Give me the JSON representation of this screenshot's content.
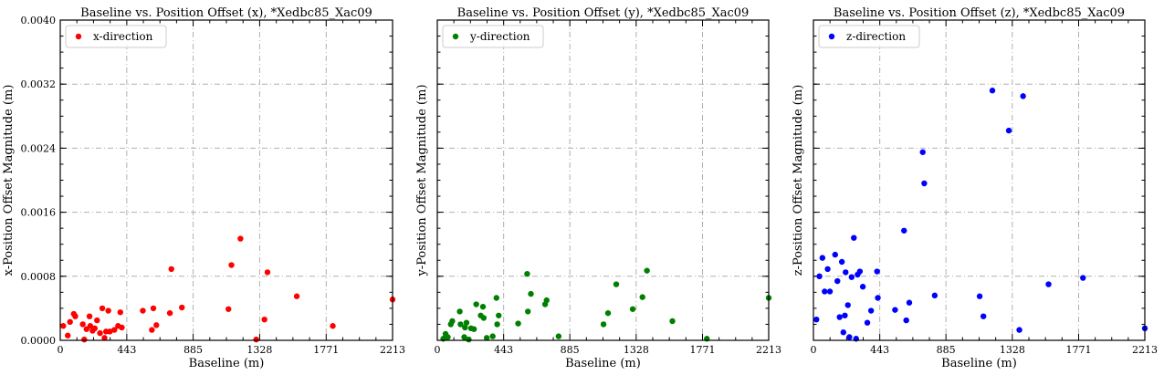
{
  "chart_data": [
    {
      "type": "scatter",
      "title": "Baseline vs. Position Offset (x), *Xedbc85_Xac09",
      "xlabel": "Baseline (m)",
      "ylabel": "x-Position Offset Magnitude (m)",
      "xlim": [
        0,
        2213
      ],
      "ylim": [
        0,
        0.004
      ],
      "xticks": [
        "0",
        "443",
        "885",
        "1328",
        "1771",
        "2213"
      ],
      "yticks": [
        "0.0000",
        "0.0008",
        "0.0016",
        "0.0024",
        "0.0032",
        "0.0040"
      ],
      "show_yticklabels": true,
      "grid": true,
      "legend_position": "top-left",
      "series": [
        {
          "name": "x-direction",
          "color": "#ff0000",
          "points": [
            [
              20,
              0.00018
            ],
            [
              50,
              6e-05
            ],
            [
              65,
              0.00023
            ],
            [
              90,
              0.00033
            ],
            [
              100,
              0.0003
            ],
            [
              150,
              0.0002
            ],
            [
              160,
              1e-05
            ],
            [
              175,
              0.00014
            ],
            [
              195,
              0.0003
            ],
            [
              200,
              0.00018
            ],
            [
              215,
              0.00012
            ],
            [
              230,
              0.00015
            ],
            [
              245,
              0.00025
            ],
            [
              265,
              9e-05
            ],
            [
              280,
              0.0004
            ],
            [
              295,
              3e-05
            ],
            [
              305,
              0.00011
            ],
            [
              320,
              0.00037
            ],
            [
              330,
              0.00011
            ],
            [
              360,
              0.00013
            ],
            [
              385,
              0.00018
            ],
            [
              400,
              0.00035
            ],
            [
              410,
              0.00016
            ],
            [
              550,
              0.00037
            ],
            [
              610,
              0.00013
            ],
            [
              620,
              0.0004
            ],
            [
              640,
              0.00019
            ],
            [
              730,
              0.00034
            ],
            [
              740,
              0.00089
            ],
            [
              810,
              0.00041
            ],
            [
              1120,
              0.00039
            ],
            [
              1140,
              0.00094
            ],
            [
              1200,
              0.00127
            ],
            [
              1305,
              1e-05
            ],
            [
              1360,
              0.00026
            ],
            [
              1380,
              0.00085
            ],
            [
              1575,
              0.00055
            ],
            [
              1815,
              0.00018
            ],
            [
              2213,
              0.00051
            ]
          ]
        }
      ]
    },
    {
      "type": "scatter",
      "title": "Baseline vs. Position Offset (y), *Xedbc85_Xac09",
      "xlabel": "Baseline (m)",
      "ylabel": "y-Position Offset Magnitude (m)",
      "xlim": [
        0,
        2213
      ],
      "ylim": [
        0,
        0.004
      ],
      "xticks": [
        "0",
        "443",
        "885",
        "1328",
        "1771",
        "2213"
      ],
      "yticks": [],
      "show_yticklabels": false,
      "grid": true,
      "legend_position": "top-left",
      "series": [
        {
          "name": "y-direction",
          "color": "#008000",
          "points": [
            [
              40,
              2e-05
            ],
            [
              55,
              8e-05
            ],
            [
              70,
              4e-05
            ],
            [
              90,
              0.0002
            ],
            [
              100,
              0.00024
            ],
            [
              150,
              0.00036
            ],
            [
              155,
              0.0002
            ],
            [
              180,
              4e-05
            ],
            [
              185,
              0.00016
            ],
            [
              195,
              0.00022
            ],
            [
              210,
              1e-05
            ],
            [
              225,
              0.00015
            ],
            [
              245,
              0.00014
            ],
            [
              260,
              0.00045
            ],
            [
              290,
              0.00031
            ],
            [
              305,
              0.00042
            ],
            [
              310,
              0.00028
            ],
            [
              330,
              3e-05
            ],
            [
              370,
              5e-05
            ],
            [
              395,
              0.00053
            ],
            [
              400,
              0.0002
            ],
            [
              410,
              0.00031
            ],
            [
              540,
              0.00021
            ],
            [
              600,
              0.00083
            ],
            [
              605,
              0.00036
            ],
            [
              625,
              0.00058
            ],
            [
              720,
              0.00045
            ],
            [
              730,
              0.0005
            ],
            [
              810,
              5e-05
            ],
            [
              1110,
              0.0002
            ],
            [
              1140,
              0.00034
            ],
            [
              1195,
              0.0007
            ],
            [
              1305,
              0.00039
            ],
            [
              1370,
              0.00054
            ],
            [
              1400,
              0.00087
            ],
            [
              1570,
              0.00024
            ],
            [
              1800,
              2e-05
            ],
            [
              2213,
              0.00053
            ]
          ]
        }
      ]
    },
    {
      "type": "scatter",
      "title": "Baseline vs. Position Offset (z), *Xedbc85_Xac09",
      "xlabel": "Baseline (m)",
      "ylabel": "z-Position Offset Magnitude (m)",
      "xlim": [
        0,
        2213
      ],
      "ylim": [
        0,
        0.004
      ],
      "xticks": [
        "0",
        "443",
        "885",
        "1328",
        "1771",
        "2213"
      ],
      "yticks": [],
      "show_yticklabels": false,
      "grid": true,
      "legend_position": "top-left",
      "series": [
        {
          "name": "z-direction",
          "color": "#0000ff",
          "points": [
            [
              20,
              0.00026
            ],
            [
              40,
              0.0008
            ],
            [
              60,
              0.00103
            ],
            [
              75,
              0.00061
            ],
            [
              95,
              0.00089
            ],
            [
              110,
              0.00061
            ],
            [
              145,
              0.00107
            ],
            [
              160,
              0.00074
            ],
            [
              175,
              0.00029
            ],
            [
              190,
              0.00098
            ],
            [
              200,
              0.0001
            ],
            [
              210,
              0.00031
            ],
            [
              215,
              0.00085
            ],
            [
              230,
              0.00044
            ],
            [
              240,
              4e-05
            ],
            [
              255,
              0.00079
            ],
            [
              270,
              0.00128
            ],
            [
              285,
              2e-05
            ],
            [
              295,
              0.00082
            ],
            [
              310,
              0.00086
            ],
            [
              330,
              0.00067
            ],
            [
              360,
              0.00022
            ],
            [
              385,
              0.00037
            ],
            [
              425,
              0.00086
            ],
            [
              430,
              0.00053
            ],
            [
              545,
              0.00038
            ],
            [
              605,
              0.00137
            ],
            [
              620,
              0.00025
            ],
            [
              640,
              0.00047
            ],
            [
              730,
              0.00235
            ],
            [
              740,
              0.00196
            ],
            [
              810,
              0.00056
            ],
            [
              1110,
              0.00055
            ],
            [
              1135,
              0.0003
            ],
            [
              1195,
              0.00312
            ],
            [
              1305,
              0.00262
            ],
            [
              1375,
              0.00013
            ],
            [
              1400,
              0.00305
            ],
            [
              1570,
              0.0007
            ],
            [
              1800,
              0.00078
            ],
            [
              2213,
              0.00015
            ]
          ]
        }
      ]
    }
  ]
}
